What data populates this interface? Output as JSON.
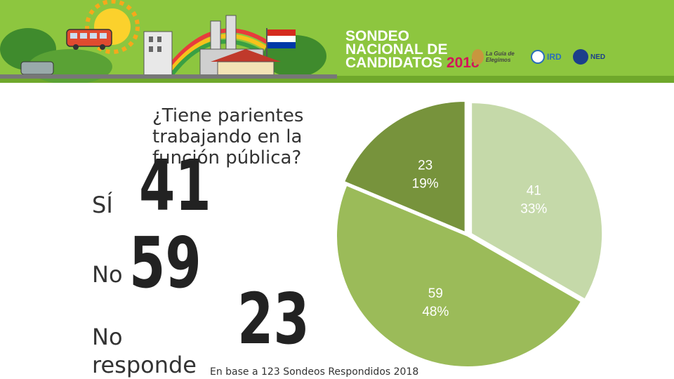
{
  "banner": {
    "title_lines": [
      "SONDEO",
      "NACIONAL DE",
      "CANDIDATOS"
    ],
    "year": "2018",
    "logo_guia": "La Guía de Elegimos",
    "logo_ird": "IRD",
    "logo_ned": "NED"
  },
  "question": "¿Tiene parientes trabajando en la función pública?",
  "answers": [
    {
      "label": "SÍ",
      "value": "41"
    },
    {
      "label": "No",
      "value": "59"
    },
    {
      "label": "No responde",
      "value": "23"
    }
  ],
  "footnote": "En base a 123 Sondeos Respondidos 2018",
  "colors": {
    "si": "#c5d9a9",
    "no": "#9bbb59",
    "no_responde": "#77933c",
    "banner": "#8dc63f"
  },
  "chart_data": {
    "type": "pie",
    "categories": [
      "SÍ",
      "No",
      "No responde"
    ],
    "values": [
      41,
      59,
      23
    ],
    "percent_labels": [
      "33%",
      "48%",
      "19%"
    ],
    "title": "¿Tiene parientes trabajando en la función pública?"
  }
}
